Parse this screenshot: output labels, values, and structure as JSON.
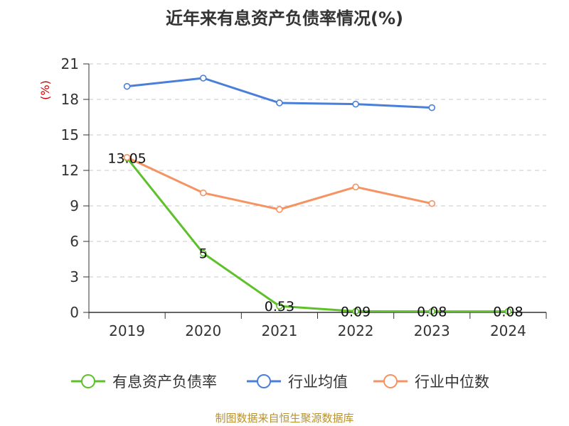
{
  "chart_data": {
    "type": "line",
    "title": "近年来有息资产负债率情况(%)",
    "ylabel": "(%)",
    "categories": [
      "2019",
      "2020",
      "2021",
      "2022",
      "2023",
      "2024"
    ],
    "ylim": [
      0,
      21
    ],
    "yticks": [
      0,
      3,
      6,
      9,
      12,
      15,
      18,
      21
    ],
    "grid": true,
    "legend_position": "bottom",
    "series": [
      {
        "name": "有息资产负债率",
        "color": "#5ec12a",
        "values": [
          13.05,
          5,
          0.53,
          0.09,
          0.08,
          0.08
        ],
        "labels": [
          "13.05",
          "5",
          "0.53",
          "0.09",
          "0.08",
          "0.08"
        ]
      },
      {
        "name": "行业均值",
        "color": "#4a7fd9",
        "values": [
          19.1,
          19.8,
          17.7,
          17.6,
          17.3,
          null
        ]
      },
      {
        "name": "行业中位数",
        "color": "#f59362",
        "values": [
          13.1,
          10.1,
          8.7,
          10.6,
          9.2,
          null
        ]
      }
    ]
  },
  "source": "制图数据来自恒生聚源数据库"
}
